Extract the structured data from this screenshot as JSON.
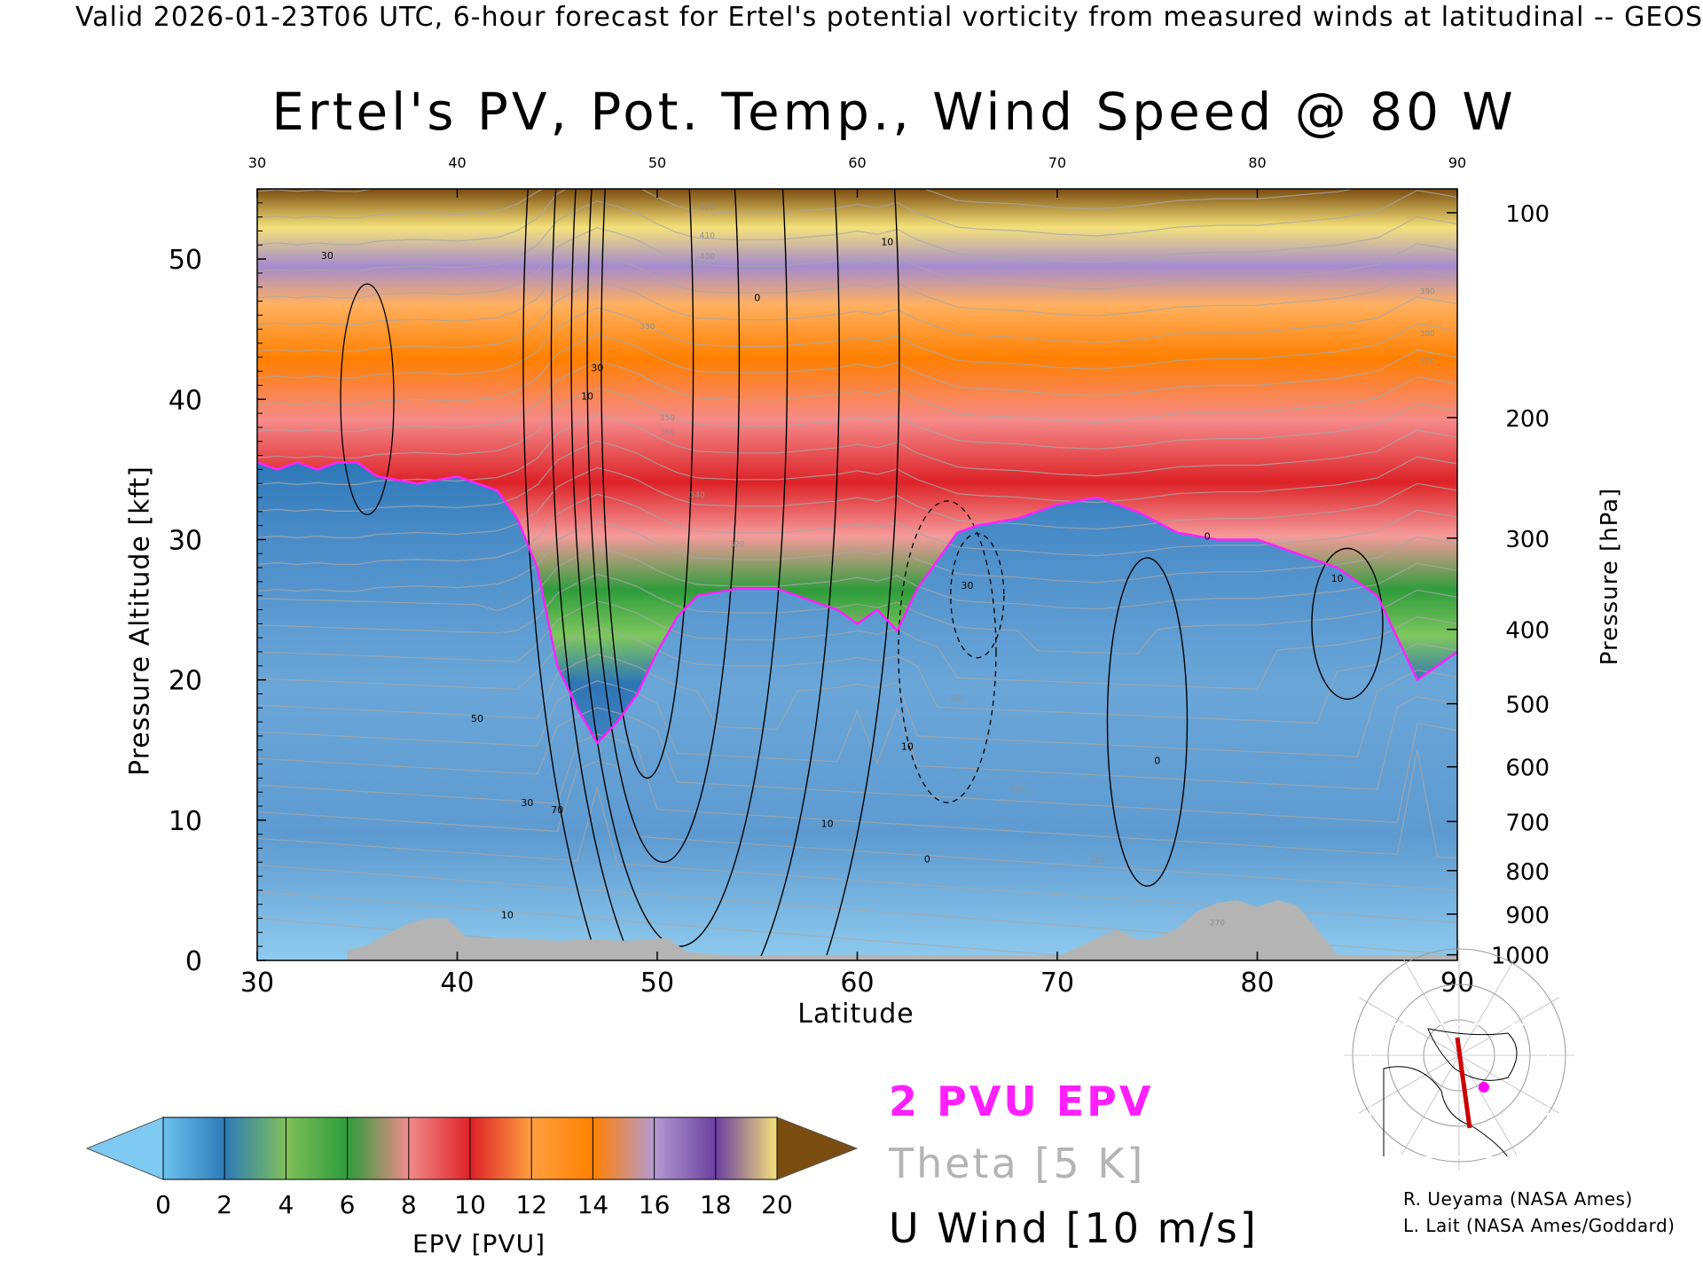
{
  "header": "Valid 2026-01-23T06 UTC, 6-hour forecast for Ertel's potential vorticity from measured winds at latitudinal -- GEOS",
  "chart_data": {
    "type": "heatmap",
    "title": "Ertel's PV, Pot. Temp., Wind Speed @ 80 W",
    "xlabel": "Latitude",
    "ylabel": "Pressure Altitude [kft]",
    "ylabel_right": "Pressure [hPa]",
    "xlim": [
      30,
      90
    ],
    "ylim": [
      0,
      55
    ],
    "x_ticks": [
      "30",
      "40",
      "50",
      "60",
      "70",
      "80",
      "90"
    ],
    "y_ticks": [
      "0",
      "10",
      "20",
      "30",
      "40",
      "50"
    ],
    "pressure_ticks": [
      {
        "label": "1000",
        "kft": 0.4
      },
      {
        "label": "900",
        "kft": 3.3
      },
      {
        "label": "800",
        "kft": 6.4
      },
      {
        "label": "700",
        "kft": 9.9
      },
      {
        "label": "600",
        "kft": 13.8
      },
      {
        "label": "500",
        "kft": 18.3
      },
      {
        "label": "400",
        "kft": 23.6
      },
      {
        "label": "300",
        "kft": 30.1
      },
      {
        "label": "200",
        "kft": 38.7
      },
      {
        "label": "100",
        "kft": 53.3
      }
    ],
    "tropopause_2pvu_kft": [
      [
        30,
        35.5
      ],
      [
        31,
        35
      ],
      [
        32,
        35.5
      ],
      [
        33,
        35
      ],
      [
        34,
        35.5
      ],
      [
        35,
        35.5
      ],
      [
        36,
        34.5
      ],
      [
        38,
        34
      ],
      [
        40,
        34.5
      ],
      [
        42,
        33.5
      ],
      [
        43,
        31.5
      ],
      [
        44,
        28
      ],
      [
        45,
        21
      ],
      [
        46,
        18
      ],
      [
        47,
        15.5
      ],
      [
        48,
        17
      ],
      [
        49,
        19
      ],
      [
        50,
        22
      ],
      [
        51,
        24.5
      ],
      [
        52,
        26
      ],
      [
        54,
        26.5
      ],
      [
        56,
        26.5
      ],
      [
        58,
        25.5
      ],
      [
        59,
        25
      ],
      [
        60,
        24
      ],
      [
        61,
        25
      ],
      [
        62,
        23.5
      ],
      [
        63,
        26.5
      ],
      [
        64,
        28.5
      ],
      [
        65,
        30.5
      ],
      [
        66,
        31
      ],
      [
        68,
        31.5
      ],
      [
        70,
        32.5
      ],
      [
        72,
        33
      ],
      [
        74,
        32
      ],
      [
        76,
        30.5
      ],
      [
        78,
        30
      ],
      [
        80,
        30
      ],
      [
        81,
        29.5
      ],
      [
        82,
        29
      ],
      [
        84,
        28
      ],
      [
        86,
        26
      ],
      [
        87,
        23
      ],
      [
        88,
        20
      ],
      [
        89,
        21
      ],
      [
        90,
        22
      ]
    ],
    "terrain_kft": [
      [
        34.5,
        0.7
      ],
      [
        35.5,
        1.1
      ],
      [
        36.5,
        1.9
      ],
      [
        37.5,
        2.6
      ],
      [
        38.5,
        3.0
      ],
      [
        39.5,
        3.0
      ],
      [
        40.5,
        1.6
      ],
      [
        43,
        1.6
      ],
      [
        45,
        1.4
      ],
      [
        46.5,
        1.5
      ],
      [
        48.5,
        1.4
      ],
      [
        50.5,
        1.6
      ],
      [
        51.5,
        0.6
      ],
      [
        54,
        0.3
      ],
      [
        60,
        0.4
      ],
      [
        66,
        0.3
      ],
      [
        70,
        0.3
      ],
      [
        71,
        0.9
      ],
      [
        72,
        1.6
      ],
      [
        73,
        2.2
      ],
      [
        74,
        1.5
      ],
      [
        75,
        1.6
      ],
      [
        76,
        2.3
      ],
      [
        77,
        3.5
      ],
      [
        78,
        4.1
      ],
      [
        79,
        4.3
      ],
      [
        80,
        3.8
      ],
      [
        81,
        4.3
      ],
      [
        82,
        3.9
      ],
      [
        83,
        2.2
      ],
      [
        84,
        0.4
      ],
      [
        90,
        0.3
      ]
    ],
    "jet_core": {
      "lat": 49.5,
      "kft": 39,
      "max_ms": 70
    },
    "wind_contour_labels": [
      "30",
      "10",
      "0",
      "10",
      "30",
      "10",
      "0",
      "10",
      "0",
      "10",
      "0",
      "30",
      "50",
      "70",
      "30",
      "10"
    ],
    "theta_labels": [
      "420",
      "410",
      "400",
      "390",
      "380",
      "370",
      "360",
      "350",
      "340",
      "330",
      "320",
      "310",
      "300",
      "290",
      "280",
      "270"
    ],
    "colorbar": {
      "label": "EPV [PVU]",
      "ticks": [
        "0",
        "2",
        "4",
        "6",
        "8",
        "10",
        "12",
        "14",
        "16",
        "18",
        "20"
      ],
      "colors": [
        "#6cc1ee",
        "#2d7bb8",
        "#7fbf5a",
        "#2e9c3c",
        "#f28b8b",
        "#dd2228",
        "#ffa040",
        "#ff8000",
        "#b39bd2",
        "#6a3fa0",
        "#f5e27a"
      ],
      "under_color": "#7fcaf2",
      "over_color": "#7a4c10"
    }
  },
  "legend": {
    "epv": "2 PVU EPV",
    "theta": "Theta [5 K]",
    "wind": "U Wind [10 m/s]"
  },
  "colors": {
    "tropopause": "#ff22ff",
    "theta": "#a8a8a8",
    "wind": "#000000",
    "terrain": "#b4b4b4",
    "section_line": "#cc0000",
    "location_dot": "#ff00ff"
  },
  "credits": [
    "R. Ueyama (NASA Ames)",
    "L. Lait (NASA Ames/Goddard)"
  ]
}
